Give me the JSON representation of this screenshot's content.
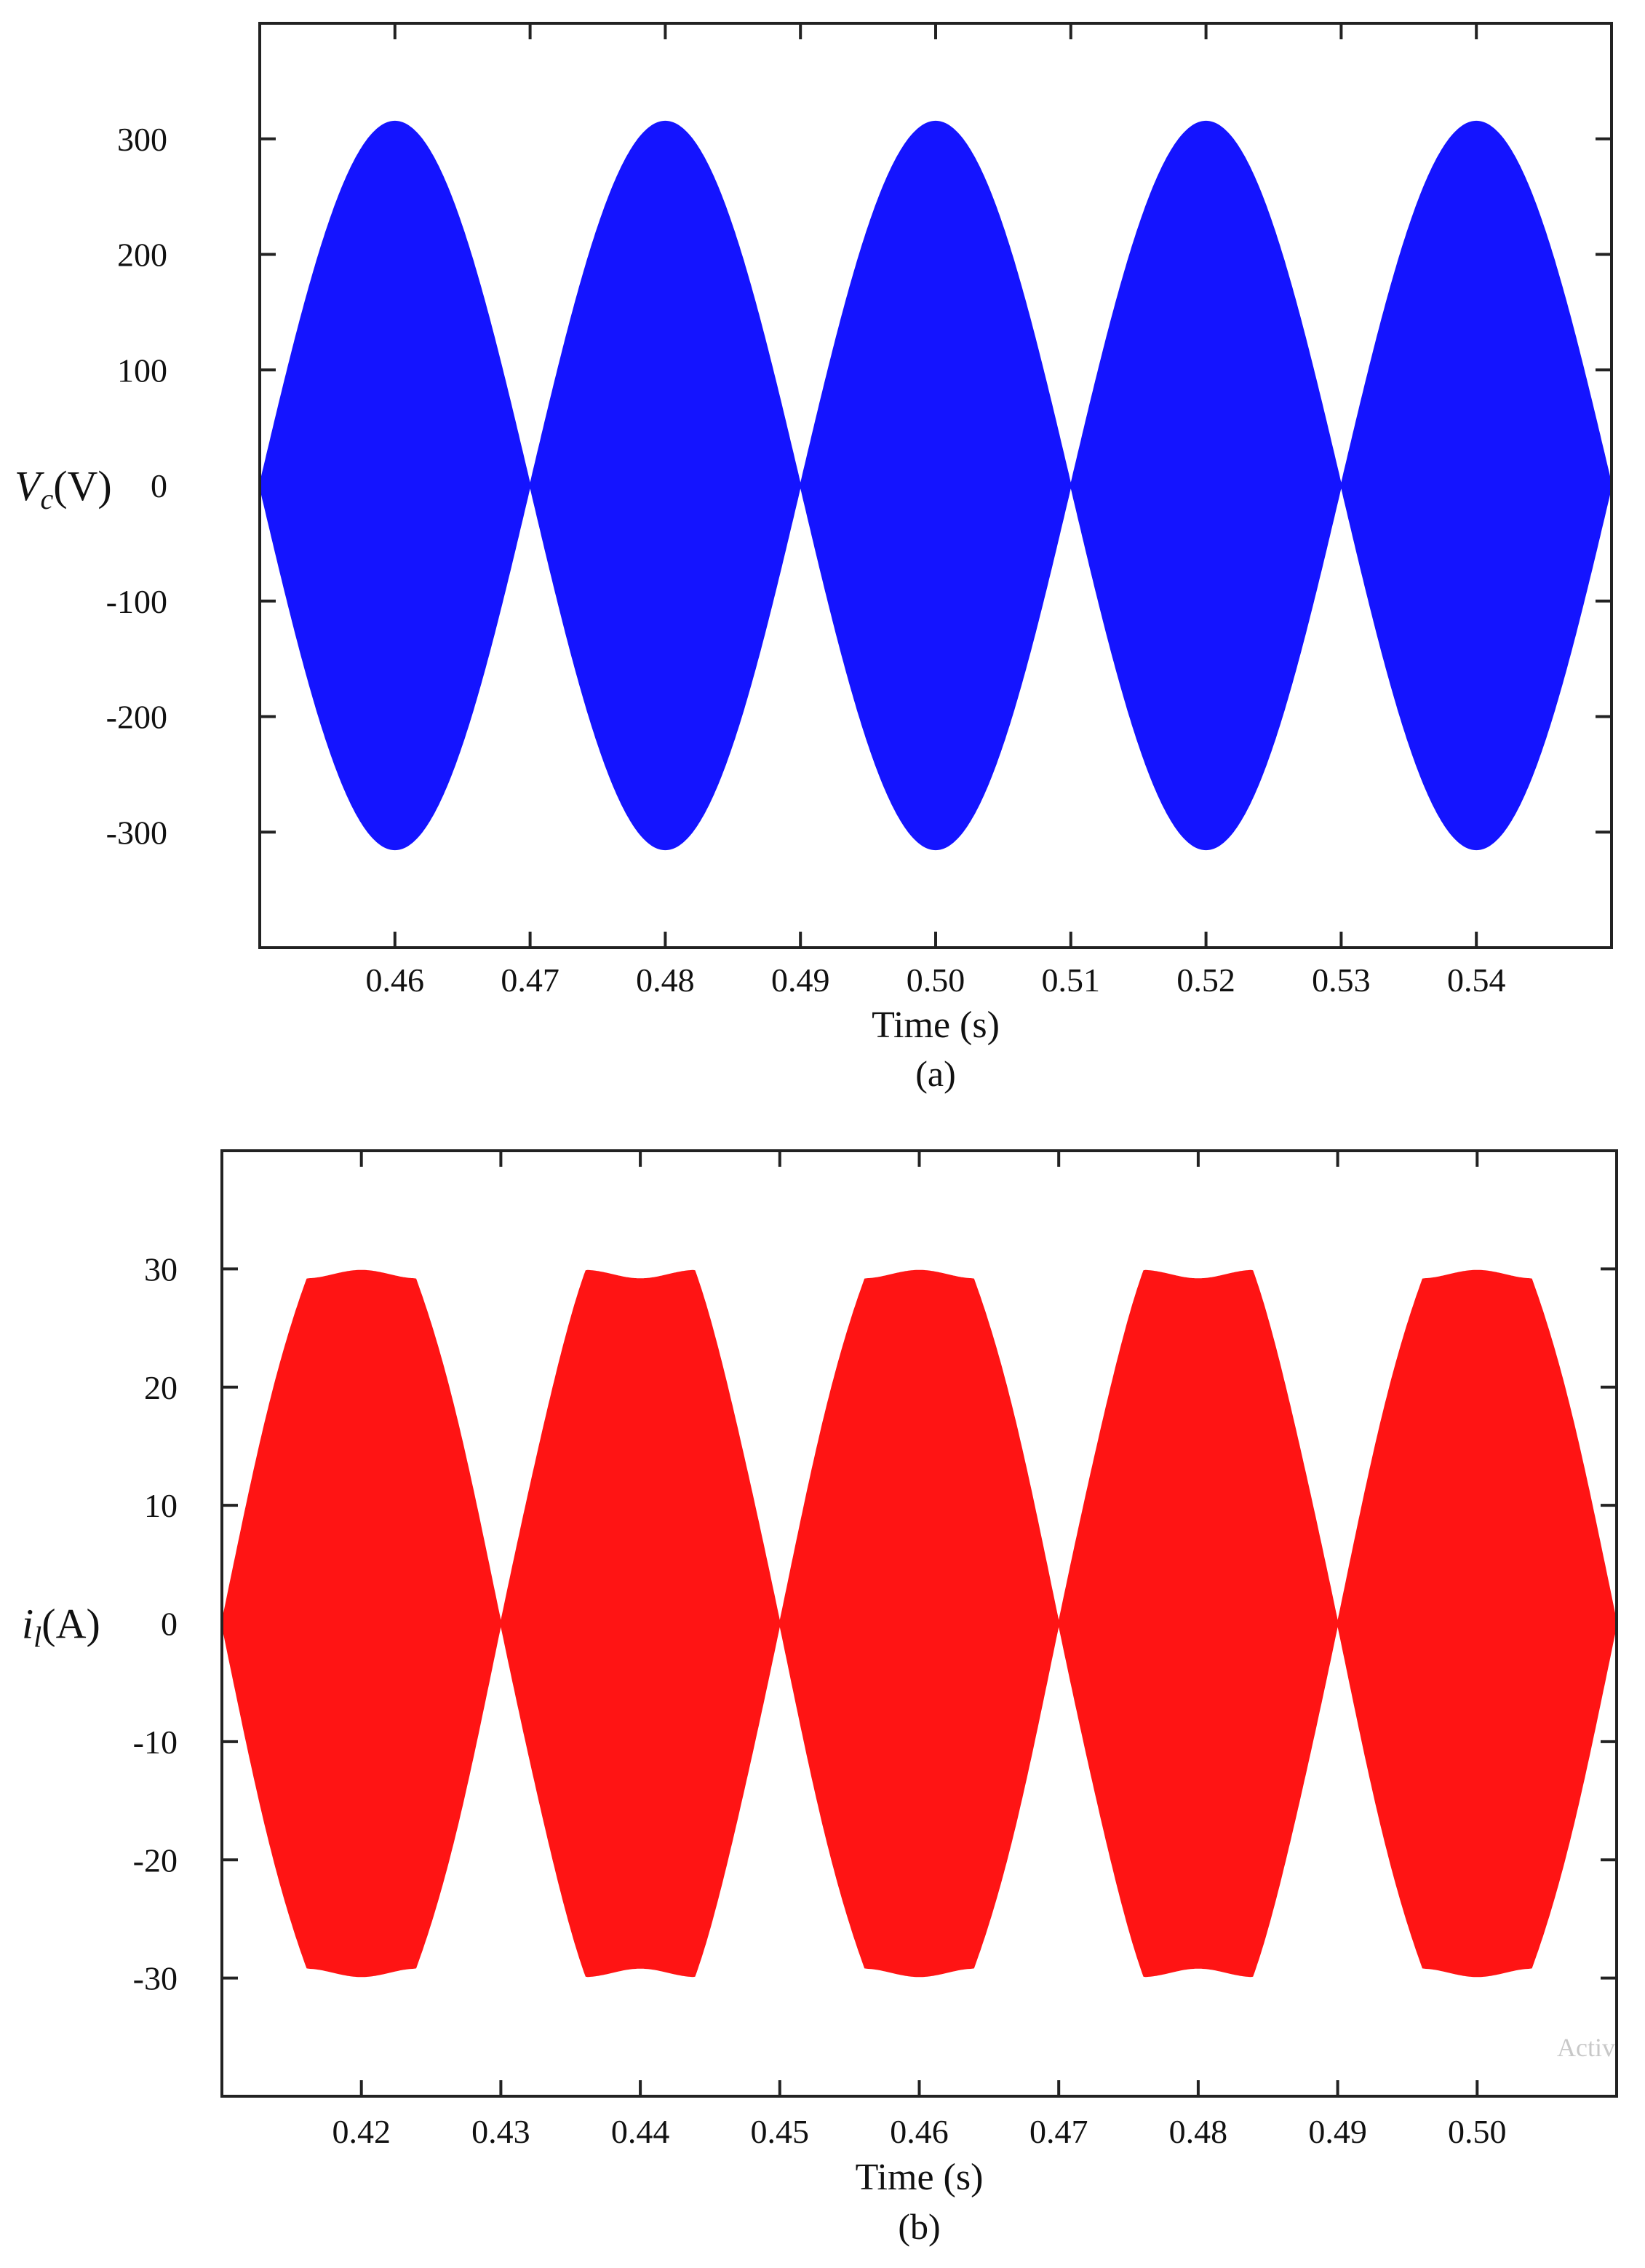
{
  "chart_data": [
    {
      "type": "area",
      "panel": "a",
      "caption": "(a)",
      "xlabel": "Time (s)",
      "ylabel_symbol": "V",
      "ylabel_subscript": "c",
      "ylabel_unit": "(V)",
      "xlim": [
        0.45,
        0.55
      ],
      "ylim": [
        -400,
        400
      ],
      "xticks": [
        0.46,
        0.47,
        0.48,
        0.49,
        0.5,
        0.51,
        0.52,
        0.53,
        0.54
      ],
      "xtick_labels": [
        "0.46",
        "0.47",
        "0.48",
        "0.49",
        "0.50",
        "0.51",
        "0.52",
        "0.53",
        "0.54"
      ],
      "yticks": [
        300,
        200,
        100,
        0,
        -100,
        -200,
        -300
      ],
      "ytick_labels": [
        "300",
        "200",
        "100",
        "0",
        "-100",
        "-200",
        "-300"
      ],
      "envelope": {
        "shape": "abs-sine",
        "amplitude": 315,
        "zeros": [
          0.45,
          0.47,
          0.49,
          0.51,
          0.53,
          0.55
        ],
        "peaks": [
          0.46,
          0.48,
          0.5,
          0.52,
          0.54
        ]
      },
      "color": "#1414ff"
    },
    {
      "type": "area",
      "panel": "b",
      "caption": "(b)",
      "xlabel": "Time (s)",
      "ylabel_symbol": "i",
      "ylabel_subscript": "l",
      "ylabel_unit": "(A)",
      "xlim": [
        0.41,
        0.51
      ],
      "ylim": [
        -40,
        40
      ],
      "xticks": [
        0.42,
        0.43,
        0.44,
        0.45,
        0.46,
        0.47,
        0.48,
        0.49,
        0.5
      ],
      "xtick_labels": [
        "0.42",
        "0.43",
        "0.44",
        "0.45",
        "0.46",
        "0.47",
        "0.48",
        "0.49",
        "0.50"
      ],
      "yticks": [
        30,
        20,
        10,
        0,
        -10,
        -20,
        -30
      ],
      "ytick_labels": [
        "30",
        "20",
        "10",
        "0",
        "-10",
        "-20",
        "-30"
      ],
      "envelope": {
        "shape": "clipped-sine",
        "amplitude": 29.5,
        "zeros": [
          0.41,
          0.43,
          0.45,
          0.47,
          0.49,
          0.51
        ],
        "peaks": [
          0.42,
          0.44,
          0.46,
          0.48,
          0.5
        ]
      },
      "color": "#ff1414"
    }
  ],
  "watermark": "Activ"
}
